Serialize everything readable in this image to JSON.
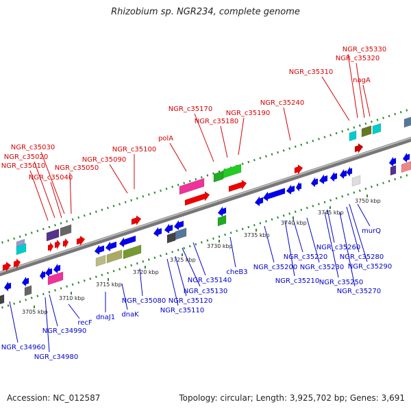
{
  "title": "Rhizobium sp. NGR234, complete genome",
  "footer": {
    "accession": "Accession: NC_012587",
    "stats": "Topology: circular; Length: 3,925,702 bp; Genes: 3,691"
  },
  "colors": {
    "top_label": "#d40000",
    "bottom_label": "#0000c8",
    "backbone": "#888888",
    "forward_gene": "#ff0000",
    "reverse_gene": "#0000ee",
    "track_dots": "#228b22"
  },
  "ticks": [
    "3705 kbp",
    "3710 kbp",
    "3715 kbp",
    "3720 kbp",
    "3725 kbp",
    "3730 kbp",
    "3735 kbp",
    "3740 kbp",
    "3745 kbp",
    "3750 kbp"
  ],
  "top_genes": [
    "NGR_c35330",
    "NGR_c35320",
    "nagA",
    "NGR_c35310",
    "NGR_c35240",
    "NGR_c35170",
    "NGR_c35190",
    "NGR_c35180",
    "polA",
    "NGR_c35100",
    "NGR_c35030",
    "NGR_c35090",
    "NGR_c35020",
    "NGR_c35010",
    "NGR_c35050",
    "NGR_c35040"
  ],
  "bottom_genes": [
    "NGR_c34960",
    "NGR_c34980",
    "NGR_c34990",
    "recF",
    "dnaJ1",
    "dnaK",
    "NGR_c35080",
    "NGR_c35120",
    "NGR_c35110",
    "NGR_c35130",
    "NGR_c35140",
    "cheB3",
    "NGR_c35200",
    "NGR_c35210",
    "NGR_c35220",
    "NGR_c35230",
    "NGR_c35250",
    "NGR_c35260",
    "NGR_c35270",
    "NGR_c35280",
    "NGR_c35290",
    "murQ"
  ]
}
